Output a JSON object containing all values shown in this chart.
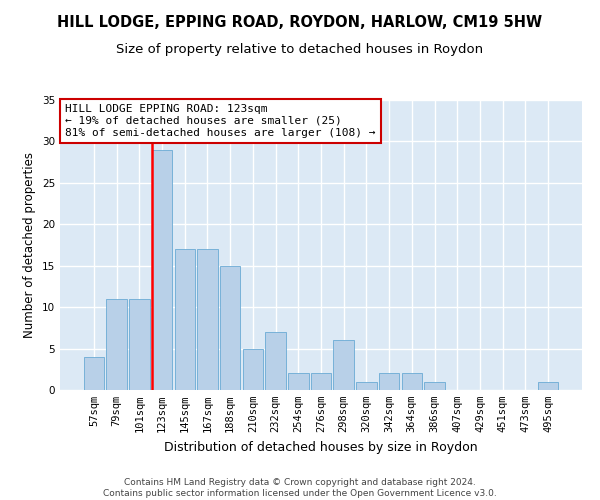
{
  "title1": "HILL LODGE, EPPING ROAD, ROYDON, HARLOW, CM19 5HW",
  "title2": "Size of property relative to detached houses in Roydon",
  "xlabel": "Distribution of detached houses by size in Roydon",
  "ylabel": "Number of detached properties",
  "categories": [
    "57sqm",
    "79sqm",
    "101sqm",
    "123sqm",
    "145sqm",
    "167sqm",
    "188sqm",
    "210sqm",
    "232sqm",
    "254sqm",
    "276sqm",
    "298sqm",
    "320sqm",
    "342sqm",
    "364sqm",
    "386sqm",
    "407sqm",
    "429sqm",
    "451sqm",
    "473sqm",
    "495sqm"
  ],
  "values": [
    4,
    11,
    11,
    29,
    17,
    17,
    15,
    5,
    7,
    2,
    2,
    6,
    1,
    2,
    2,
    1,
    0,
    0,
    0,
    0,
    1
  ],
  "bar_color": "#b8d0e8",
  "bar_edge_color": "#6aaad4",
  "red_line_index": 3,
  "annotation_text": "HILL LODGE EPPING ROAD: 123sqm\n← 19% of detached houses are smaller (25)\n81% of semi-detached houses are larger (108) →",
  "annotation_box_color": "#ffffff",
  "annotation_box_edge_color": "#cc0000",
  "ylim": [
    0,
    35
  ],
  "yticks": [
    0,
    5,
    10,
    15,
    20,
    25,
    30,
    35
  ],
  "bg_color": "#dce9f5",
  "grid_color": "#ffffff",
  "fig_bg_color": "#ffffff",
  "footer_text": "Contains HM Land Registry data © Crown copyright and database right 2024.\nContains public sector information licensed under the Open Government Licence v3.0.",
  "title1_fontsize": 10.5,
  "title2_fontsize": 9.5,
  "xlabel_fontsize": 9,
  "ylabel_fontsize": 8.5,
  "tick_fontsize": 7.5,
  "annotation_fontsize": 8,
  "footer_fontsize": 6.5
}
